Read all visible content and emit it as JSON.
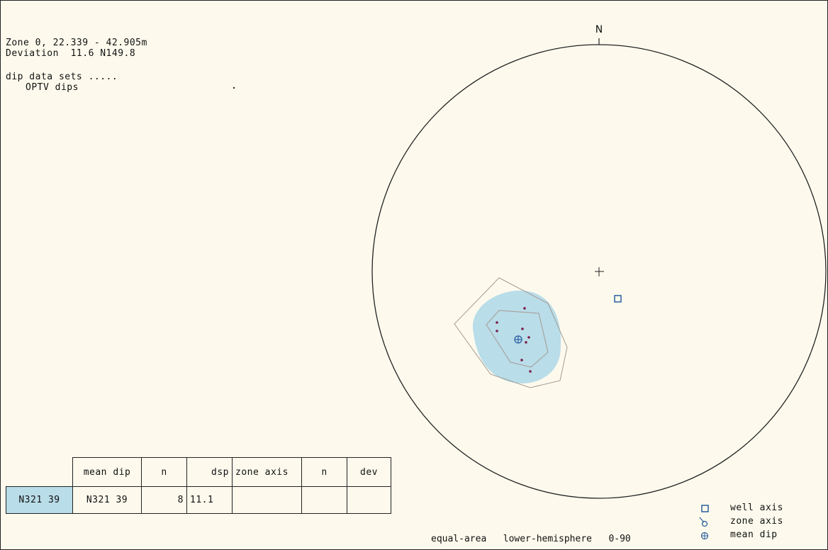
{
  "header": {
    "zone": "Zone 0, 22.339 - 42.905m",
    "deviation": "Deviation  11.6 N149.8",
    "dip_data_sets": "dip data sets .....",
    "set_name": "OPTV dips"
  },
  "stereonet": {
    "north_label": "N",
    "projection_label": "equal-area   lower-hemisphere   0-90",
    "colors": {
      "circle": "#222222",
      "density": "#b9dde9",
      "contour": "#a59a93",
      "pole": "#7a1f4a",
      "symbol": "#2a5f9e"
    },
    "mean_dip": "N321 39",
    "well_axis": "N149.8 11.6",
    "pole_count": 8
  },
  "table": {
    "headers": [
      "mean dip",
      "n",
      "dsp",
      "zone axis",
      "n",
      "dev"
    ],
    "row": {
      "set": "N321 39",
      "mean_dip": "N321 39",
      "n": "8",
      "dsp": "11.1",
      "zone_axis": "",
      "n2": "",
      "dev": ""
    }
  },
  "legend": {
    "items": [
      {
        "label": "well axis",
        "icon": "square-icon"
      },
      {
        "label": "zone axis",
        "icon": "zone-axis-icon"
      },
      {
        "label": "mean dip",
        "icon": "circle-cross-icon"
      }
    ]
  }
}
